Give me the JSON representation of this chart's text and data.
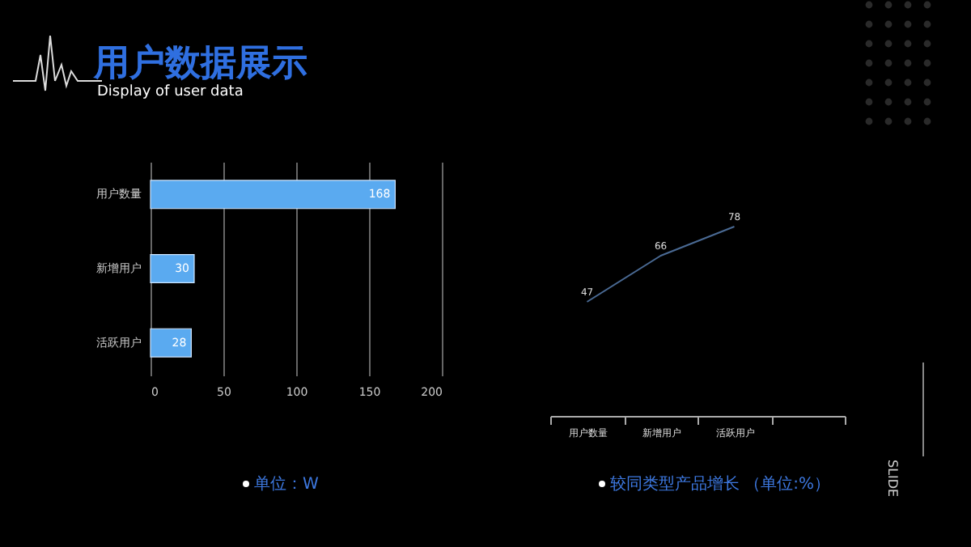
{
  "chart_data": [
    {
      "type": "bar",
      "orientation": "horizontal",
      "title": "用户数据展示",
      "subtitle": "Display of user data",
      "categories": [
        "用户数量",
        "新增用户",
        "活跃用户"
      ],
      "values": [
        168,
        30,
        28
      ],
      "color": "#5aaaf0",
      "xlim": [
        0,
        200
      ],
      "xticks": [
        0,
        50,
        100,
        150,
        200
      ],
      "grid": "x",
      "data_labels": true,
      "annotations": [
        "单位：W"
      ]
    },
    {
      "type": "line",
      "categories": [
        "用户数量",
        "新增用户",
        "活跃用户",
        null
      ],
      "values": [
        47,
        66,
        78,
        null
      ],
      "color": "#4a6a94",
      "data_labels": true,
      "marker": "none",
      "annotations": [
        "较同类型产品增长 （单位:%）",
        "SLIDE"
      ]
    }
  ]
}
